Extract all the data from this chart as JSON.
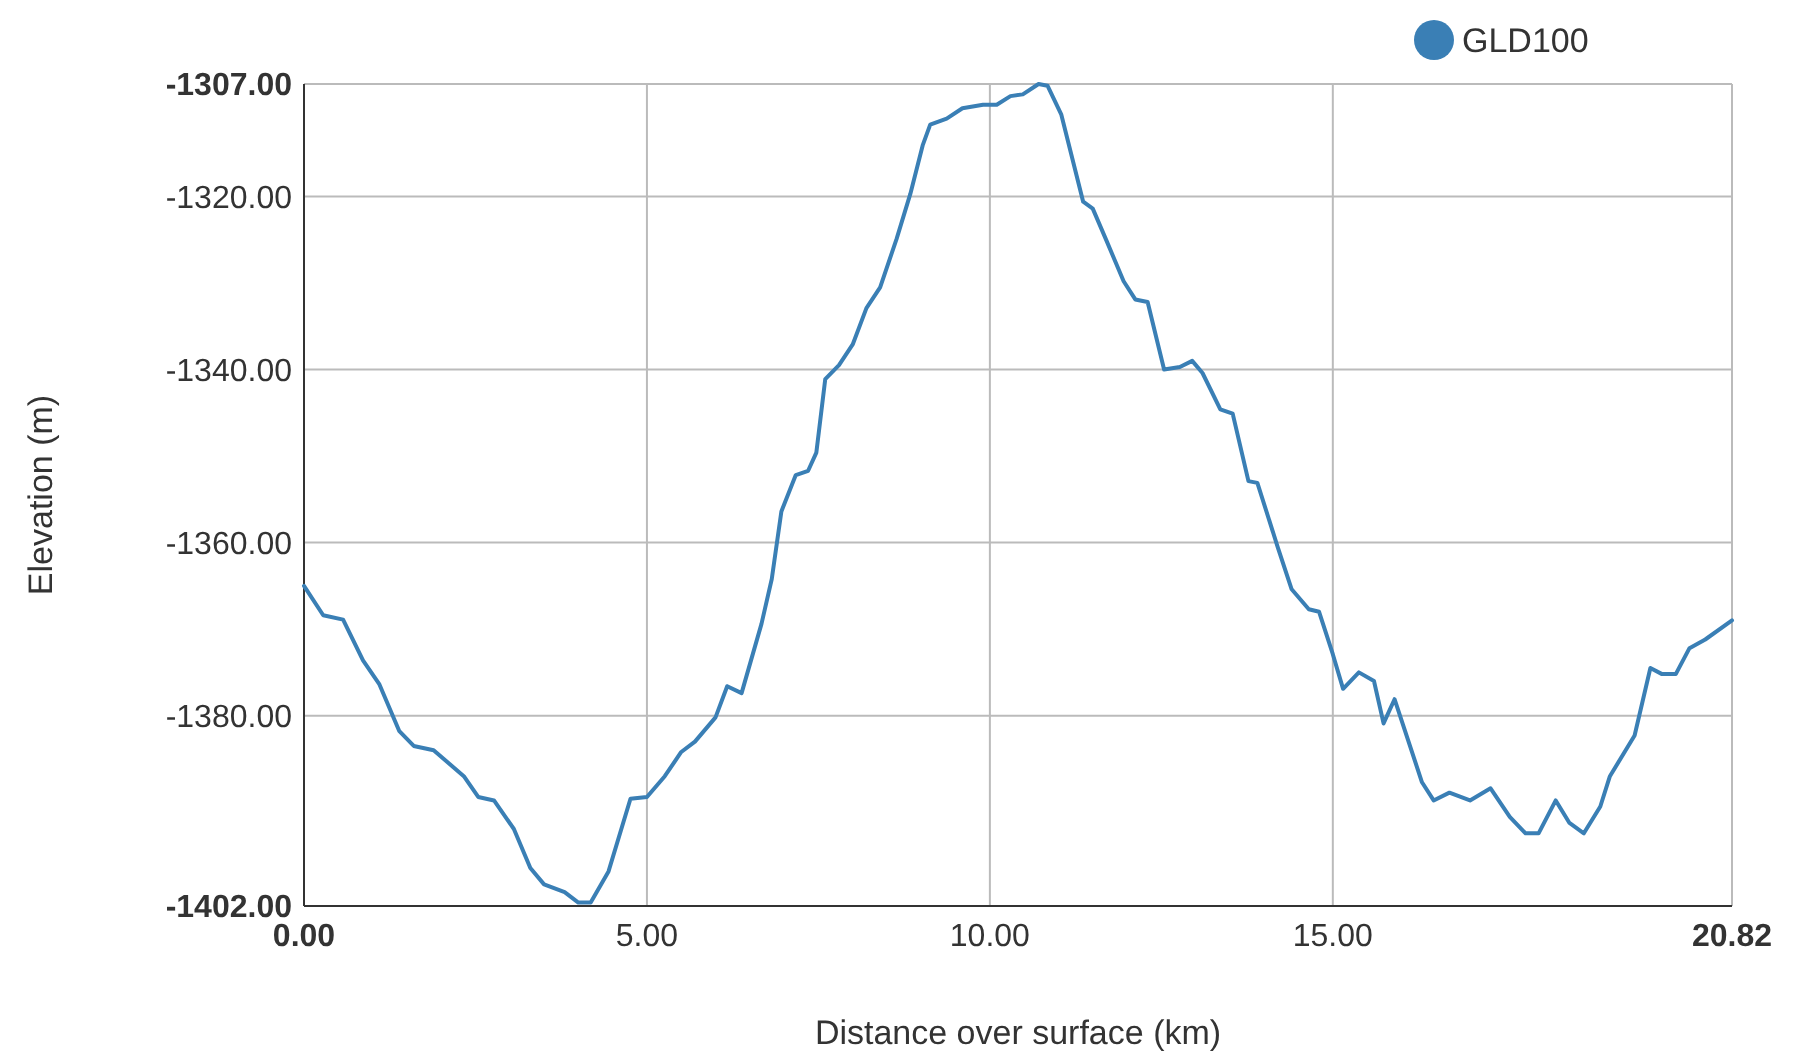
{
  "chart_data": {
    "type": "line",
    "xlabel": "Distance over surface (km)",
    "ylabel": "Elevation (m)",
    "xlim": [
      0,
      20.82
    ],
    "ylim": [
      -1402,
      -1307
    ],
    "xticks": [
      {
        "value": 0,
        "label": "0.00"
      },
      {
        "value": 5,
        "label": "5.00"
      },
      {
        "value": 10,
        "label": "10.00"
      },
      {
        "value": 15,
        "label": "15.00"
      },
      {
        "value": 20.82,
        "label": "20.82"
      }
    ],
    "yticks": [
      {
        "value": -1402,
        "label": "-1402.00"
      },
      {
        "value": -1380,
        "label": "-1380.00"
      },
      {
        "value": -1360,
        "label": "-1360.00"
      },
      {
        "value": -1340,
        "label": "-1340.00"
      },
      {
        "value": -1320,
        "label": "-1320.00"
      },
      {
        "value": -1307,
        "label": "-1307.00"
      }
    ],
    "grid": true,
    "legend": "top right",
    "marker": "none",
    "line_style": "solid",
    "series": [
      {
        "name": "GLD100",
        "color": "#3a7fb5",
        "x": [
          0,
          0.28,
          0.57,
          0.86,
          1.1,
          1.39,
          1.6,
          1.89,
          2.33,
          2.54,
          2.77,
          3.06,
          3.3,
          3.5,
          3.8,
          4.0,
          4.18,
          4.44,
          4.76,
          5.0,
          5.26,
          5.5,
          5.7,
          6.0,
          6.17,
          6.38,
          6.67,
          6.82,
          6.96,
          7.17,
          7.35,
          7.47,
          7.6,
          7.8,
          8.0,
          8.2,
          8.4,
          8.64,
          8.84,
          9.02,
          9.13,
          9.37,
          9.6,
          9.9,
          10.1,
          10.3,
          10.48,
          10.71,
          10.84,
          11.04,
          11.36,
          11.5,
          11.7,
          11.95,
          12.12,
          12.3,
          12.54,
          12.77,
          12.95,
          13.1,
          13.36,
          13.54,
          13.77,
          13.9,
          14.2,
          14.4,
          14.65,
          14.8,
          15.0,
          15.15,
          15.38,
          15.6,
          15.74,
          15.9,
          16.3,
          16.47,
          16.7,
          17.0,
          17.3,
          17.58,
          17.81,
          18.0,
          18.25,
          18.45,
          18.66,
          18.9,
          19.04,
          19.4,
          19.63,
          19.8,
          20.0,
          20.2,
          20.43,
          20.82
        ],
        "values": [
          -1365,
          -1368.4,
          -1368.9,
          -1373.6,
          -1376.4,
          -1381.8,
          -1383.5,
          -1384,
          -1387,
          -1389.4,
          -1389.8,
          -1393.1,
          -1397.6,
          -1399.5,
          -1400.4,
          -1401.6,
          -1401.6,
          -1398,
          -1389.6,
          -1389.4,
          -1387,
          -1384.2,
          -1383,
          -1380.2,
          -1376.6,
          -1377.4,
          -1369.4,
          -1364.2,
          -1356.4,
          -1352.2,
          -1351.7,
          -1349.6,
          -1341.1,
          -1339.5,
          -1337.1,
          -1332.9,
          -1330.5,
          -1324.9,
          -1319.7,
          -1314.1,
          -1311.7,
          -1311,
          -1309.8,
          -1309.4,
          -1309.4,
          -1308.4,
          -1308.2,
          -1307,
          -1307.2,
          -1310.5,
          -1320.6,
          -1321.4,
          -1325.1,
          -1329.8,
          -1331.9,
          -1332.2,
          -1340,
          -1339.7,
          -1339,
          -1340.4,
          -1344.6,
          -1345.1,
          -1352.9,
          -1353.1,
          -1360.6,
          -1365.4,
          -1367.7,
          -1368,
          -1372.9,
          -1376.9,
          -1375,
          -1376,
          -1380.9,
          -1378.1,
          -1387.7,
          -1389.8,
          -1388.9,
          -1389.8,
          -1388.4,
          -1391.7,
          -1393.6,
          -1393.6,
          -1389.8,
          -1392.4,
          -1393.6,
          -1390.5,
          -1387,
          -1382.3,
          -1374.5,
          -1375.2,
          -1375.2,
          -1372.2,
          -1371.2,
          -1369
        ]
      }
    ]
  }
}
